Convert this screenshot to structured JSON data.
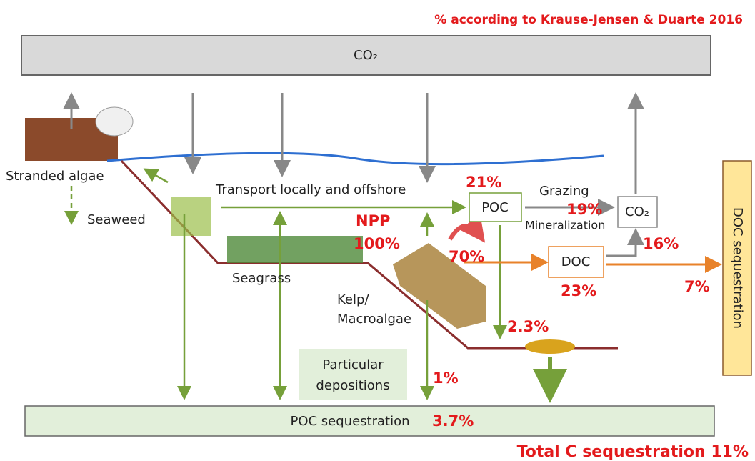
{
  "header": {
    "source_note": "% according to Krause-Jensen & Duarte 2016",
    "atmosphere": "CO₂"
  },
  "habitats": {
    "stranded": "Stranded algae",
    "seaweed": "Seaweed",
    "seagrass": "Seagrass",
    "kelp_line1": "Kelp/",
    "kelp_line2": "Macroalgae"
  },
  "flows": {
    "transport": "Transport locally and offshore",
    "grazing": "Grazing",
    "mineralization": "Mineralization",
    "npp": "NPP"
  },
  "boxes": {
    "poc": "POC",
    "co2": "CO₂",
    "doc": "DOC",
    "doc_sequestration": "DOC sequestration",
    "deposition_line1": "Particular",
    "deposition_line2": "depositions",
    "poc_sequestration": "POC sequestration"
  },
  "percentages": {
    "poc": "21%",
    "grazing": "19%",
    "npp": "100%",
    "doc_share": "70%",
    "co2": "16%",
    "doc": "23%",
    "doc_export": "7%",
    "burial": "2.3%",
    "deposition": "1%",
    "poc_sequestration": "3.7%"
  },
  "footer": {
    "total": "Total C sequestration 11%"
  }
}
